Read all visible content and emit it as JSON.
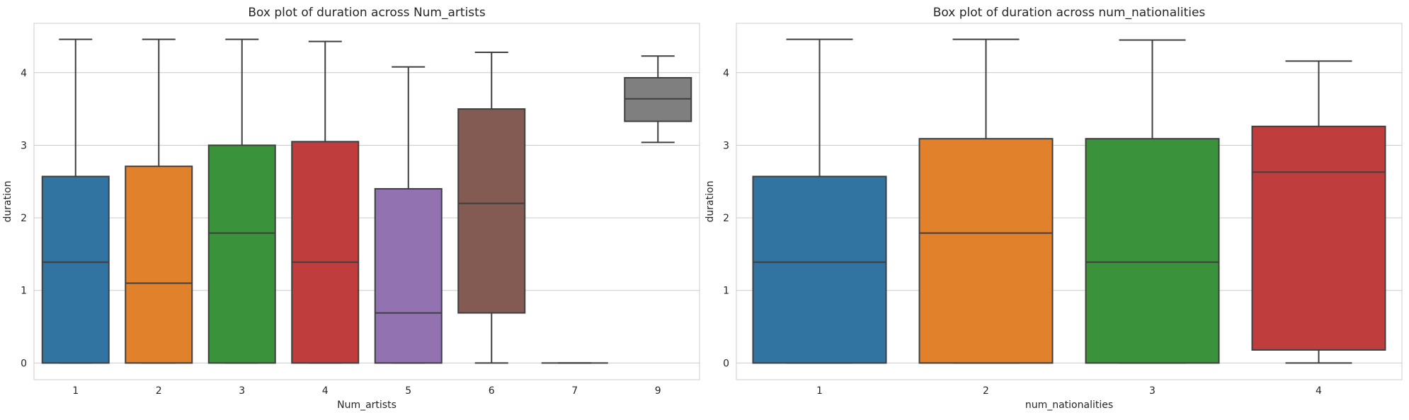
{
  "chart_data": [
    {
      "type": "box",
      "title": "Box plot of duration across Num_artists",
      "xlabel": "Num_artists",
      "ylabel": "duration",
      "ylim": [
        -0.23,
        4.68
      ],
      "yticks": [
        0,
        1,
        2,
        3,
        4
      ],
      "grid": true,
      "categories": [
        "1",
        "2",
        "3",
        "4",
        "5",
        "6",
        "7",
        "9"
      ],
      "boxes": [
        {
          "category": "1",
          "color": "#3274a1",
          "min": 0,
          "q1": 0,
          "median": 1.39,
          "q3": 2.57,
          "max": 4.46
        },
        {
          "category": "2",
          "color": "#e1812c",
          "min": 0,
          "q1": 0,
          "median": 1.1,
          "q3": 2.71,
          "max": 4.46
        },
        {
          "category": "3",
          "color": "#3a923a",
          "min": 0,
          "q1": 0,
          "median": 1.79,
          "q3": 3.0,
          "max": 4.46
        },
        {
          "category": "4",
          "color": "#c03d3e",
          "min": 0,
          "q1": 0,
          "median": 1.39,
          "q3": 3.05,
          "max": 4.43
        },
        {
          "category": "5",
          "color": "#9372b2",
          "min": 0,
          "q1": 0,
          "median": 0.69,
          "q3": 2.4,
          "max": 4.08
        },
        {
          "category": "6",
          "color": "#845b53",
          "min": 0,
          "q1": 0.69,
          "median": 2.2,
          "q3": 3.5,
          "max": 4.28
        },
        {
          "category": "7",
          "color": "#d684bd",
          "min": 0,
          "q1": 0,
          "median": 0,
          "q3": 0,
          "max": 0
        },
        {
          "category": "9",
          "color": "#7f7f7f",
          "min": 3.04,
          "q1": 3.33,
          "median": 3.64,
          "q3": 3.93,
          "max": 4.23
        }
      ]
    },
    {
      "type": "box",
      "title": "Box plot of duration across num_nationalities",
      "xlabel": "num_nationalities",
      "ylabel": "duration",
      "ylim": [
        -0.23,
        4.68
      ],
      "yticks": [
        0,
        1,
        2,
        3,
        4
      ],
      "grid": true,
      "categories": [
        "1",
        "2",
        "3",
        "4"
      ],
      "boxes": [
        {
          "category": "1",
          "color": "#3274a1",
          "min": 0,
          "q1": 0,
          "median": 1.39,
          "q3": 2.57,
          "max": 4.46
        },
        {
          "category": "2",
          "color": "#e1812c",
          "min": 0,
          "q1": 0,
          "median": 1.79,
          "q3": 3.09,
          "max": 4.46
        },
        {
          "category": "3",
          "color": "#3a923a",
          "min": 0,
          "q1": 0,
          "median": 1.39,
          "q3": 3.09,
          "max": 4.45
        },
        {
          "category": "4",
          "color": "#c03d3e",
          "min": 0,
          "q1": 0.18,
          "median": 2.63,
          "q3": 3.26,
          "max": 4.16
        }
      ]
    }
  ]
}
